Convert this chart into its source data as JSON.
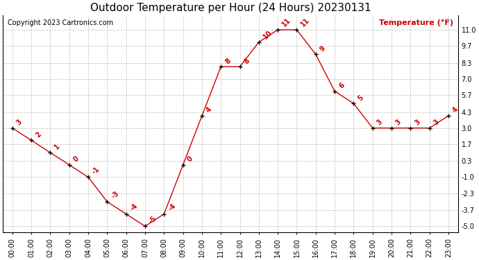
{
  "title": "Outdoor Temperature per Hour (24 Hours) 20230131",
  "copyright_text": "Copyright 2023 Cartronics.com",
  "legend_label": "Temperature (°F)",
  "hours": [
    "00:00",
    "01:00",
    "02:00",
    "03:00",
    "04:00",
    "05:00",
    "06:00",
    "07:00",
    "08:00",
    "09:00",
    "10:00",
    "11:00",
    "12:00",
    "13:00",
    "14:00",
    "15:00",
    "16:00",
    "17:00",
    "18:00",
    "19:00",
    "20:00",
    "21:00",
    "22:00",
    "23:00"
  ],
  "temperatures": [
    3,
    2,
    1,
    0,
    -1,
    -3,
    -4,
    -5,
    -4,
    0,
    4,
    8,
    8,
    10,
    11,
    11,
    9,
    6,
    5,
    3,
    3,
    3,
    3,
    4
  ],
  "line_color": "#cc0000",
  "marker_color": "#000000",
  "label_color": "#cc0000",
  "grid_color": "#bbbbbb",
  "bg_color": "#ffffff",
  "yticks": [
    11.0,
    9.7,
    8.3,
    7.0,
    5.7,
    4.3,
    3.0,
    1.7,
    0.3,
    -1.0,
    -2.3,
    -3.7,
    -5.0
  ],
  "ylim": [
    -5.5,
    12.2
  ],
  "title_fontsize": 11,
  "label_fontsize": 7,
  "copyright_fontsize": 7,
  "tick_fontsize": 7
}
